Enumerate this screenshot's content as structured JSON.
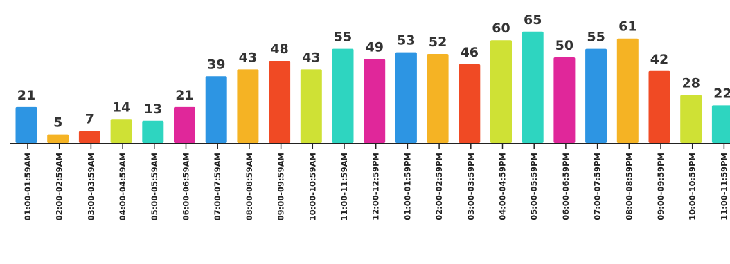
{
  "chart_data": {
    "type": "bar",
    "categories": [
      "01:00-01:59AM",
      "02:00-02:59AM",
      "03:00-03:59AM",
      "04:00-04:59AM",
      "05:00-05:59AM",
      "06:00-06:59AM",
      "07:00-07:59AM",
      "08:00-08:59AM",
      "09:00-09:59AM",
      "10:00-10:59AM",
      "11:00-11:59AM",
      "12:00-12:59PM",
      "01:00-01:59PM",
      "02:00-02:59PM",
      "03:00-03:59PM",
      "04:00-04:59PM",
      "05:00-05:59PM",
      "06:00-06:59PM",
      "07:00-07:59PM",
      "08:00-08:59PM",
      "09:00-09:59PM",
      "10:00-10:59PM",
      "11:00-11:59PM"
    ],
    "values": [
      21,
      5,
      7,
      14,
      13,
      21,
      39,
      43,
      48,
      43,
      55,
      49,
      53,
      52,
      46,
      60,
      65,
      50,
      55,
      61,
      42,
      28,
      22
    ],
    "colors": [
      "#2d95e3",
      "#f5b324",
      "#f04a24",
      "#cfe135",
      "#2ed5c0",
      "#e0279a",
      "#2d95e3",
      "#f5b324",
      "#f04a24",
      "#cfe135",
      "#2ed5c0",
      "#e0279a",
      "#2d95e3",
      "#f5b324",
      "#f04a24",
      "#cfe135",
      "#2ed5c0",
      "#e0279a",
      "#2d95e3",
      "#f5b324",
      "#f04a24",
      "#cfe135",
      "#2ed5c0"
    ],
    "data_labels": [
      "21",
      "5",
      "7",
      "14",
      "13",
      "21",
      "39",
      "43",
      "48",
      "43",
      "55",
      "49",
      "53",
      "52",
      "46",
      "60",
      "65",
      "50",
      "55",
      "61",
      "42",
      "28",
      "22"
    ],
    "axis_color": "#222222",
    "value_label_color": "#333333",
    "title": "",
    "xlabel": "",
    "ylabel": "",
    "ylim": [
      0,
      65
    ],
    "grid": false,
    "legend": "none"
  }
}
